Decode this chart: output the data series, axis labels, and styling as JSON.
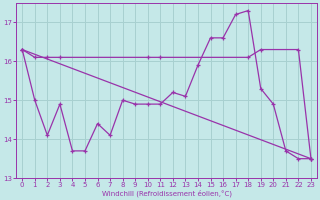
{
  "xlabel": "Windchill (Refroidissement éolien,°C)",
  "ylabel": "",
  "xlim": [
    -0.5,
    23.5
  ],
  "ylim": [
    13,
    17.5
  ],
  "yticks": [
    13,
    14,
    15,
    16,
    17
  ],
  "xticks": [
    0,
    1,
    2,
    3,
    4,
    5,
    6,
    7,
    8,
    9,
    10,
    11,
    12,
    13,
    14,
    15,
    16,
    17,
    18,
    19,
    20,
    21,
    22,
    23
  ],
  "background_color": "#c5e8e8",
  "grid_color": "#a8d0d0",
  "line_color": "#9933aa",
  "line1_x": [
    0,
    1,
    2,
    3,
    10,
    11,
    18,
    19,
    22,
    23
  ],
  "line1_y": [
    16.3,
    16.1,
    16.1,
    16.1,
    16.1,
    16.1,
    16.1,
    16.3,
    16.3,
    13.5
  ],
  "line2_x": [
    0,
    23
  ],
  "line2_y": [
    16.3,
    13.5
  ],
  "line3_x": [
    0,
    1,
    2,
    3,
    4,
    5,
    6,
    7,
    8,
    9,
    10,
    11,
    12,
    13,
    14,
    15,
    16,
    17,
    18,
    19,
    20,
    21,
    22,
    23
  ],
  "line3_y": [
    16.3,
    15.0,
    14.1,
    14.9,
    13.7,
    13.7,
    14.4,
    14.1,
    15.0,
    14.9,
    14.9,
    14.9,
    15.2,
    15.1,
    15.9,
    16.6,
    16.6,
    17.2,
    17.3,
    15.3,
    14.9,
    13.7,
    13.5,
    13.5
  ]
}
